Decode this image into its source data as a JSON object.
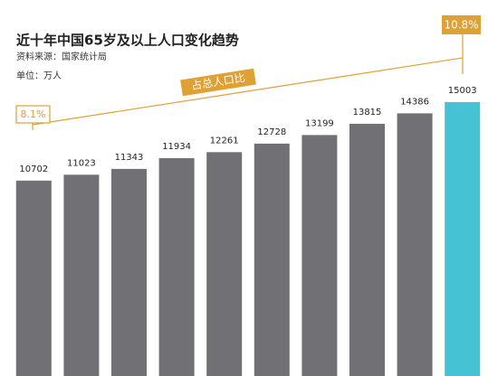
{
  "chart_data": {
    "type": "bar",
    "title": "近十年中国65岁及以上人口变化趋势",
    "subtitle": "资料来源：国家统计局",
    "unit_label": "单位：万人",
    "annotations": [
      "8.1%",
      "10.8%",
      "占总人口比"
    ],
    "categories": [
      null,
      null,
      null,
      null,
      null,
      null,
      null,
      null,
      null,
      null
    ],
    "values": [
      10702,
      11023,
      11343,
      11934,
      12261,
      12728,
      13199,
      13815,
      14386,
      15003
    ],
    "colors": [
      "#717175",
      "#717175",
      "#717175",
      "#717175",
      "#717175",
      "#717175",
      "#717175",
      "#717175",
      "#717175",
      "#45c3d4"
    ],
    "annotation_color": "#dfa034",
    "ylim": [
      0,
      20000
    ]
  }
}
